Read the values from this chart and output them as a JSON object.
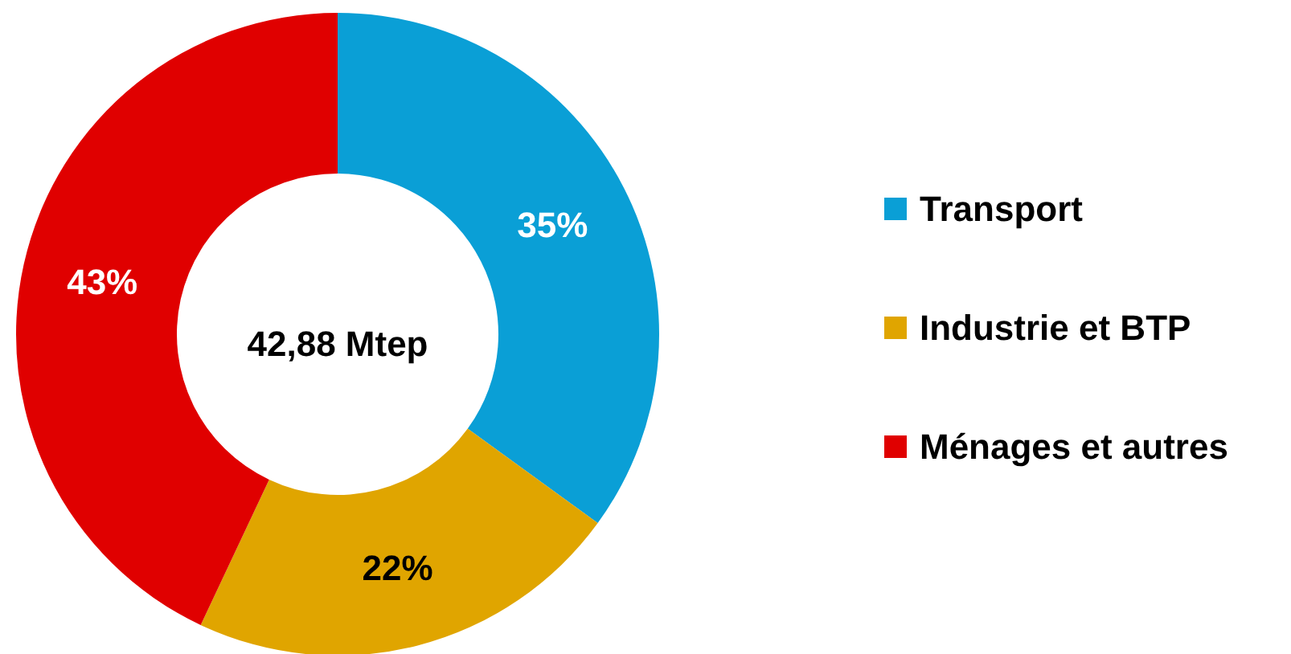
{
  "chart_data": {
    "type": "donut",
    "categories": [
      "Transport",
      "Industrie et BTP",
      "Ménages et autres"
    ],
    "values": [
      35,
      22,
      43
    ],
    "value_labels": [
      "35%",
      "22%",
      "43%"
    ],
    "colors": [
      "#0a9fd6",
      "#e0a500",
      "#e00000"
    ],
    "annotations": [
      "42,88 Mtep"
    ],
    "legend": "right"
  }
}
